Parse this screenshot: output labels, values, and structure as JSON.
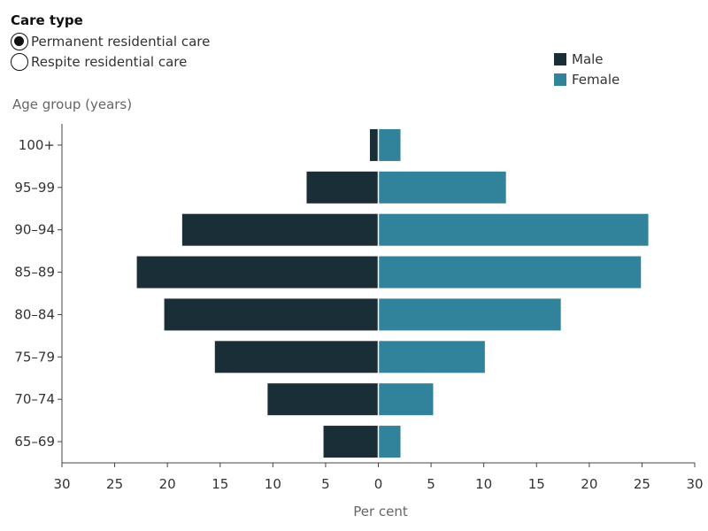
{
  "controls": {
    "title": "Care type",
    "options": [
      {
        "label": "Permanent residential care",
        "selected": true
      },
      {
        "label": "Respite residential care",
        "selected": false
      }
    ]
  },
  "legend": {
    "male_label": "Male",
    "female_label": "Female",
    "male_color": "#1a2e38",
    "female_color": "#31839b"
  },
  "chart_data": {
    "type": "bar",
    "orientation": "horizontal-diverging",
    "ylabel": "Age group (years)",
    "xlabel": "Per cent",
    "categories": [
      "100+",
      "95–99",
      "90–94",
      "85–89",
      "80–84",
      "75–79",
      "70–74",
      "65–69"
    ],
    "series": [
      {
        "name": "Male",
        "values": [
          0.8,
          6.8,
          18.6,
          22.9,
          20.3,
          15.5,
          10.5,
          5.2
        ]
      },
      {
        "name": "Female",
        "values": [
          2.1,
          12.1,
          25.6,
          24.9,
          17.3,
          10.1,
          5.2,
          2.1
        ]
      }
    ],
    "xlim": [
      -30,
      30
    ],
    "xticks": [
      -30,
      -25,
      -20,
      -15,
      -10,
      -5,
      0,
      5,
      10,
      15,
      20,
      25,
      30
    ],
    "xtick_labels": [
      "30",
      "25",
      "20",
      "15",
      "10",
      "5",
      "0",
      "5",
      "10",
      "15",
      "20",
      "25",
      "30"
    ],
    "grid": false,
    "legend_position": "top-right"
  }
}
